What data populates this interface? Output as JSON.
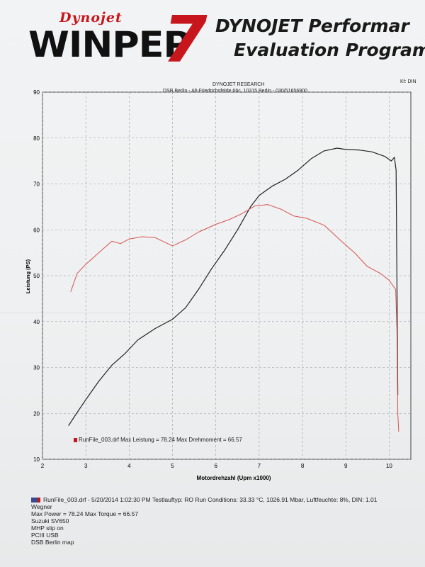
{
  "header": {
    "logo_small": "Dynojet",
    "logo_main": "WINPEP",
    "logo_number": "7",
    "title_line1": "DYNOJET Performar",
    "title_line2": "Evaluation Program",
    "company": "DYNOJET RESEARCH",
    "address": "DSB Berlin - Alt-Friedrichsfelde 66c, 10315 Berlin - 030/51656900",
    "kf": "Kf: DIN"
  },
  "legend_text": "RunFile_003.drf Max Leistung = 78.24   Max Drehmoment = 66.57",
  "info_lines": [
    "RunFile_003.drf - 5/20/2014 1:02:30 PM  Testlauftyp: RO  Run Conditions: 33.33 °C, 1026.91 Mbar,  Luftfeuchte: 8%,  DIN: 1.01",
    "Wegner",
    "Max Power = 78.24  Max Torque = 66.57",
    "Suzuki SV650",
    "MHP slip on",
    "PCIII USB",
    "DSB Berlin map"
  ],
  "colors": {
    "power": "#222222",
    "torque": "#d9534f",
    "grid": "#9a9a9a",
    "accent": "#c8161d"
  },
  "chart_data": {
    "type": "line",
    "xlabel": "Motordrehzahl (Upm x1000)",
    "ylabel": "Leistung (PS)",
    "xlim": [
      2,
      10.5
    ],
    "ylim": [
      10,
      90
    ],
    "xticks": [
      2,
      3,
      4,
      5,
      6,
      7,
      8,
      9,
      10
    ],
    "yticks": [
      10,
      20,
      30,
      40,
      50,
      60,
      70,
      80,
      90
    ],
    "grid": true,
    "series": [
      {
        "name": "",
        "x": [
          2.6,
          2.75,
          3.0,
          3.3,
          3.6,
          3.9,
          4.2,
          4.6,
          5.0,
          5.3,
          5.6,
          5.9,
          6.2,
          6.5,
          6.8,
          7.0,
          7.3,
          7.6,
          7.9,
          8.2,
          8.5,
          8.8,
          9.0,
          9.3,
          9.6,
          9.9,
          10.05,
          10.12,
          10.16,
          10.2
        ],
        "y": [
          17.3,
          19.5,
          23,
          27,
          30.5,
          33,
          36,
          38.5,
          40.5,
          43,
          47,
          51.5,
          55.5,
          60,
          65,
          67.5,
          69.5,
          71,
          73,
          75.5,
          77.2,
          77.8,
          77.5,
          77.4,
          77,
          76,
          75,
          75.8,
          73,
          24
        ]
      },
      {
        "name": "",
        "x": [
          2.65,
          2.8,
          3.0,
          3.3,
          3.6,
          3.8,
          4.0,
          4.3,
          4.6,
          5.0,
          5.3,
          5.6,
          6.0,
          6.3,
          6.6,
          6.9,
          7.2,
          7.5,
          7.8,
          8.1,
          8.5,
          8.9,
          9.2,
          9.5,
          9.8,
          10.0,
          10.15,
          10.18,
          10.2,
          10.22
        ],
        "y": [
          46.5,
          50.5,
          52.5,
          55,
          57.5,
          57,
          58,
          58.5,
          58.3,
          56.5,
          57.8,
          59.5,
          61.2,
          62.2,
          63.5,
          65.2,
          65.5,
          64.5,
          63,
          62.5,
          61,
          57.5,
          55,
          52,
          50.5,
          49,
          47,
          38,
          20,
          16
        ]
      }
    ]
  }
}
